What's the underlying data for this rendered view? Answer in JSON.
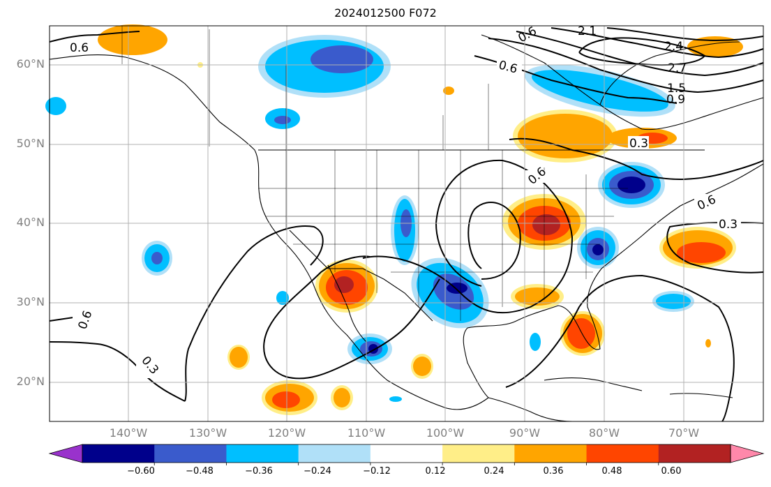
{
  "title": "2024012500 F072",
  "lat_labels": [
    "60°N",
    "50°N",
    "40°N",
    "30°N",
    "20°N"
  ],
  "lon_labels": [
    "140°W",
    "130°W",
    "120°W",
    "110°W",
    "100°W",
    "90°W",
    "80°W",
    "70°W"
  ],
  "contour_labels": [
    "0.6",
    "0.6",
    "0.3",
    "0.3",
    "0.6",
    "0.6",
    "0.6",
    "0.3",
    "2.1",
    "2.4",
    "2.7",
    "1.5",
    "0.9",
    "0.6"
  ],
  "colorbar": {
    "ticks": [
      "−0.60",
      "−0.48",
      "−0.36",
      "−0.24",
      "−0.12",
      "0.12",
      "0.24",
      "0.36",
      "0.48",
      "0.60"
    ],
    "colors": [
      "#9932cc",
      "#00008b",
      "#3a5bcc",
      "#00bfff",
      "#b0e0f8",
      "#ffffff",
      "#ffee88",
      "#ffa500",
      "#ff4500",
      "#b22222",
      "#ff88aa"
    ]
  },
  "fill_colors": {
    "blue_light": "#b0e0f8",
    "blue": "#00bfff",
    "blue_mid": "#3a5bcc",
    "blue_dark": "#00008b",
    "yellow": "#ffee88",
    "orange": "#ffa500",
    "red": "#ff4500",
    "dark_red": "#b22222"
  }
}
